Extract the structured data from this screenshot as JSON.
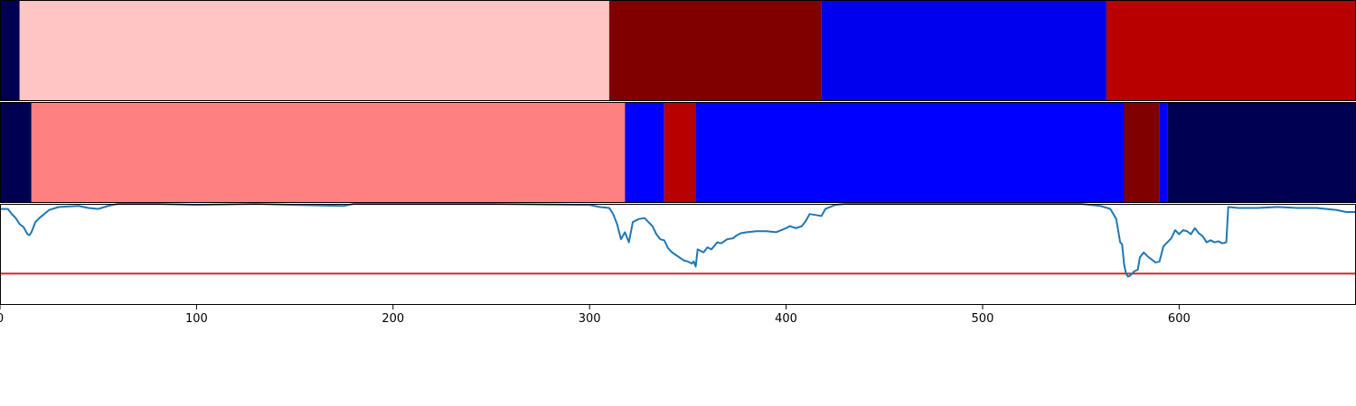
{
  "chart_data": [
    {
      "type": "heatmap",
      "xlim": [
        0,
        690
      ],
      "segments": [
        {
          "x0": 0,
          "x1": 10,
          "color": "#000050"
        },
        {
          "x0": 10,
          "x1": 310,
          "color": "#ffc4c4"
        },
        {
          "x0": 310,
          "x1": 418,
          "color": "#800000"
        },
        {
          "x0": 418,
          "x1": 563,
          "color": "#0000ee"
        },
        {
          "x0": 563,
          "x1": 690,
          "color": "#b80000"
        }
      ]
    },
    {
      "type": "heatmap",
      "xlim": [
        0,
        690
      ],
      "segments": [
        {
          "x0": 0,
          "x1": 16,
          "color": "#000050"
        },
        {
          "x0": 16,
          "x1": 318,
          "color": "#ff8080"
        },
        {
          "x0": 318,
          "x1": 338,
          "color": "#0000ff"
        },
        {
          "x0": 338,
          "x1": 354,
          "color": "#b80000"
        },
        {
          "x0": 354,
          "x1": 572,
          "color": "#0000ff"
        },
        {
          "x0": 572,
          "x1": 590,
          "color": "#800000"
        },
        {
          "x0": 590,
          "x1": 594,
          "color": "#0000ff"
        },
        {
          "x0": 594,
          "x1": 690,
          "color": "#000050"
        }
      ]
    },
    {
      "type": "line",
      "xlim": [
        0,
        690
      ],
      "ylim": [
        0,
        1.0
      ],
      "xticks": [
        "0",
        "100",
        "200",
        "300",
        "400",
        "500",
        "600"
      ],
      "threshold": 0.31,
      "threshold_color": "#d62728",
      "line_color": "#1f77b4",
      "series": [
        {
          "x": [
            0,
            4,
            6,
            8,
            10,
            12,
            14,
            15,
            16,
            18,
            20,
            25,
            30,
            40,
            45,
            50,
            55,
            60,
            80,
            100,
            130,
            150,
            175,
            180,
            200,
            250,
            300,
            305,
            310,
            312,
            314,
            316,
            318,
            320,
            322,
            325,
            328,
            330,
            332,
            334,
            336,
            338,
            340,
            342,
            345,
            348,
            350,
            352,
            353,
            354,
            355,
            358,
            360,
            362,
            365,
            367,
            370,
            373,
            375,
            377,
            380,
            385,
            390,
            395,
            400,
            402,
            405,
            408,
            410,
            412,
            415,
            418,
            420,
            425,
            430,
            440,
            450,
            500,
            550,
            560,
            565,
            568,
            570,
            571,
            572,
            573,
            574,
            575,
            577,
            579,
            580,
            582,
            584,
            586,
            588,
            590,
            592,
            594,
            596,
            598,
            600,
            602,
            604,
            606,
            608,
            610,
            612,
            614,
            616,
            618,
            620,
            622,
            624,
            625,
            630,
            640,
            650,
            660,
            670,
            680,
            685,
            690
          ],
          "y": [
            0.95,
            0.95,
            0.9,
            0.86,
            0.8,
            0.77,
            0.7,
            0.69,
            0.72,
            0.82,
            0.86,
            0.94,
            0.97,
            0.98,
            0.96,
            0.95,
            0.98,
            1.0,
            1.0,
            0.99,
            1.0,
            0.99,
            0.98,
            1.0,
            1.0,
            1.0,
            0.99,
            0.97,
            0.96,
            0.9,
            0.8,
            0.65,
            0.72,
            0.62,
            0.82,
            0.85,
            0.86,
            0.82,
            0.78,
            0.7,
            0.65,
            0.64,
            0.56,
            0.52,
            0.48,
            0.44,
            0.43,
            0.41,
            0.43,
            0.38,
            0.55,
            0.52,
            0.57,
            0.55,
            0.62,
            0.61,
            0.65,
            0.66,
            0.69,
            0.71,
            0.72,
            0.73,
            0.73,
            0.72,
            0.76,
            0.78,
            0.76,
            0.78,
            0.83,
            0.9,
            0.89,
            0.88,
            0.95,
            0.99,
            1.0,
            1.0,
            1.0,
            1.0,
            1.0,
            0.98,
            0.95,
            0.85,
            0.62,
            0.6,
            0.4,
            0.31,
            0.28,
            0.29,
            0.33,
            0.35,
            0.47,
            0.52,
            0.48,
            0.45,
            0.42,
            0.43,
            0.58,
            0.62,
            0.66,
            0.74,
            0.7,
            0.74,
            0.73,
            0.7,
            0.76,
            0.71,
            0.68,
            0.62,
            0.64,
            0.62,
            0.63,
            0.61,
            0.62,
            0.97,
            0.96,
            0.96,
            0.97,
            0.96,
            0.96,
            0.94,
            0.92,
            0.92
          ]
        }
      ]
    }
  ]
}
